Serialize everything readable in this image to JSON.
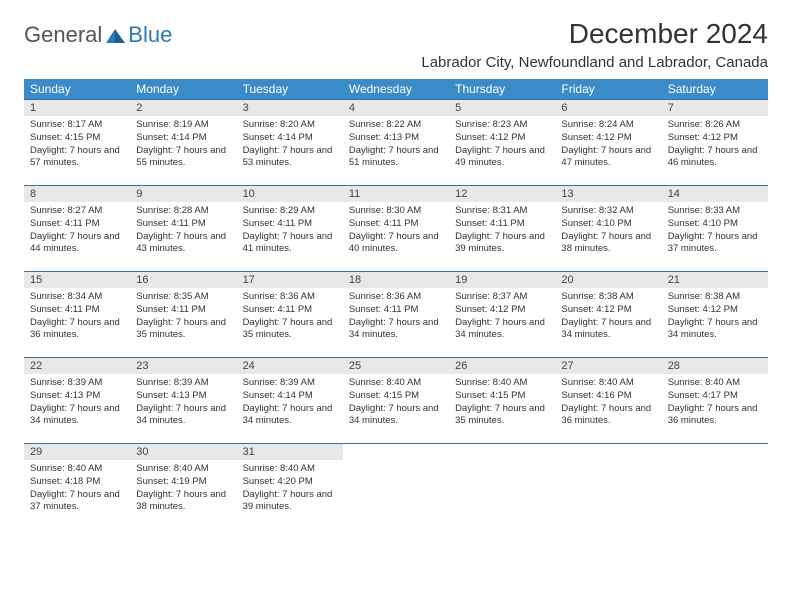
{
  "logo": {
    "part1": "General",
    "part2": "Blue"
  },
  "title": "December 2024",
  "subtitle": "Labrador City, Newfoundland and Labrador, Canada",
  "colors": {
    "header_bg": "#3b8bc9",
    "header_text": "#ffffff",
    "daynum_bg": "#e8e8e8",
    "border": "#3b6f9e",
    "logo_blue": "#2a7ab9"
  },
  "day_headers": [
    "Sunday",
    "Monday",
    "Tuesday",
    "Wednesday",
    "Thursday",
    "Friday",
    "Saturday"
  ],
  "weeks": [
    [
      {
        "n": "1",
        "sr": "8:17 AM",
        "ss": "4:15 PM",
        "dl": "7 hours and 57 minutes."
      },
      {
        "n": "2",
        "sr": "8:19 AM",
        "ss": "4:14 PM",
        "dl": "7 hours and 55 minutes."
      },
      {
        "n": "3",
        "sr": "8:20 AM",
        "ss": "4:14 PM",
        "dl": "7 hours and 53 minutes."
      },
      {
        "n": "4",
        "sr": "8:22 AM",
        "ss": "4:13 PM",
        "dl": "7 hours and 51 minutes."
      },
      {
        "n": "5",
        "sr": "8:23 AM",
        "ss": "4:12 PM",
        "dl": "7 hours and 49 minutes."
      },
      {
        "n": "6",
        "sr": "8:24 AM",
        "ss": "4:12 PM",
        "dl": "7 hours and 47 minutes."
      },
      {
        "n": "7",
        "sr": "8:26 AM",
        "ss": "4:12 PM",
        "dl": "7 hours and 46 minutes."
      }
    ],
    [
      {
        "n": "8",
        "sr": "8:27 AM",
        "ss": "4:11 PM",
        "dl": "7 hours and 44 minutes."
      },
      {
        "n": "9",
        "sr": "8:28 AM",
        "ss": "4:11 PM",
        "dl": "7 hours and 43 minutes."
      },
      {
        "n": "10",
        "sr": "8:29 AM",
        "ss": "4:11 PM",
        "dl": "7 hours and 41 minutes."
      },
      {
        "n": "11",
        "sr": "8:30 AM",
        "ss": "4:11 PM",
        "dl": "7 hours and 40 minutes."
      },
      {
        "n": "12",
        "sr": "8:31 AM",
        "ss": "4:11 PM",
        "dl": "7 hours and 39 minutes."
      },
      {
        "n": "13",
        "sr": "8:32 AM",
        "ss": "4:10 PM",
        "dl": "7 hours and 38 minutes."
      },
      {
        "n": "14",
        "sr": "8:33 AM",
        "ss": "4:10 PM",
        "dl": "7 hours and 37 minutes."
      }
    ],
    [
      {
        "n": "15",
        "sr": "8:34 AM",
        "ss": "4:11 PM",
        "dl": "7 hours and 36 minutes."
      },
      {
        "n": "16",
        "sr": "8:35 AM",
        "ss": "4:11 PM",
        "dl": "7 hours and 35 minutes."
      },
      {
        "n": "17",
        "sr": "8:36 AM",
        "ss": "4:11 PM",
        "dl": "7 hours and 35 minutes."
      },
      {
        "n": "18",
        "sr": "8:36 AM",
        "ss": "4:11 PM",
        "dl": "7 hours and 34 minutes."
      },
      {
        "n": "19",
        "sr": "8:37 AM",
        "ss": "4:12 PM",
        "dl": "7 hours and 34 minutes."
      },
      {
        "n": "20",
        "sr": "8:38 AM",
        "ss": "4:12 PM",
        "dl": "7 hours and 34 minutes."
      },
      {
        "n": "21",
        "sr": "8:38 AM",
        "ss": "4:12 PM",
        "dl": "7 hours and 34 minutes."
      }
    ],
    [
      {
        "n": "22",
        "sr": "8:39 AM",
        "ss": "4:13 PM",
        "dl": "7 hours and 34 minutes."
      },
      {
        "n": "23",
        "sr": "8:39 AM",
        "ss": "4:13 PM",
        "dl": "7 hours and 34 minutes."
      },
      {
        "n": "24",
        "sr": "8:39 AM",
        "ss": "4:14 PM",
        "dl": "7 hours and 34 minutes."
      },
      {
        "n": "25",
        "sr": "8:40 AM",
        "ss": "4:15 PM",
        "dl": "7 hours and 34 minutes."
      },
      {
        "n": "26",
        "sr": "8:40 AM",
        "ss": "4:15 PM",
        "dl": "7 hours and 35 minutes."
      },
      {
        "n": "27",
        "sr": "8:40 AM",
        "ss": "4:16 PM",
        "dl": "7 hours and 36 minutes."
      },
      {
        "n": "28",
        "sr": "8:40 AM",
        "ss": "4:17 PM",
        "dl": "7 hours and 36 minutes."
      }
    ],
    [
      {
        "n": "29",
        "sr": "8:40 AM",
        "ss": "4:18 PM",
        "dl": "7 hours and 37 minutes."
      },
      {
        "n": "30",
        "sr": "8:40 AM",
        "ss": "4:19 PM",
        "dl": "7 hours and 38 minutes."
      },
      {
        "n": "31",
        "sr": "8:40 AM",
        "ss": "4:20 PM",
        "dl": "7 hours and 39 minutes."
      },
      null,
      null,
      null,
      null
    ]
  ],
  "labels": {
    "sunrise": "Sunrise: ",
    "sunset": "Sunset: ",
    "daylight": "Daylight: "
  }
}
